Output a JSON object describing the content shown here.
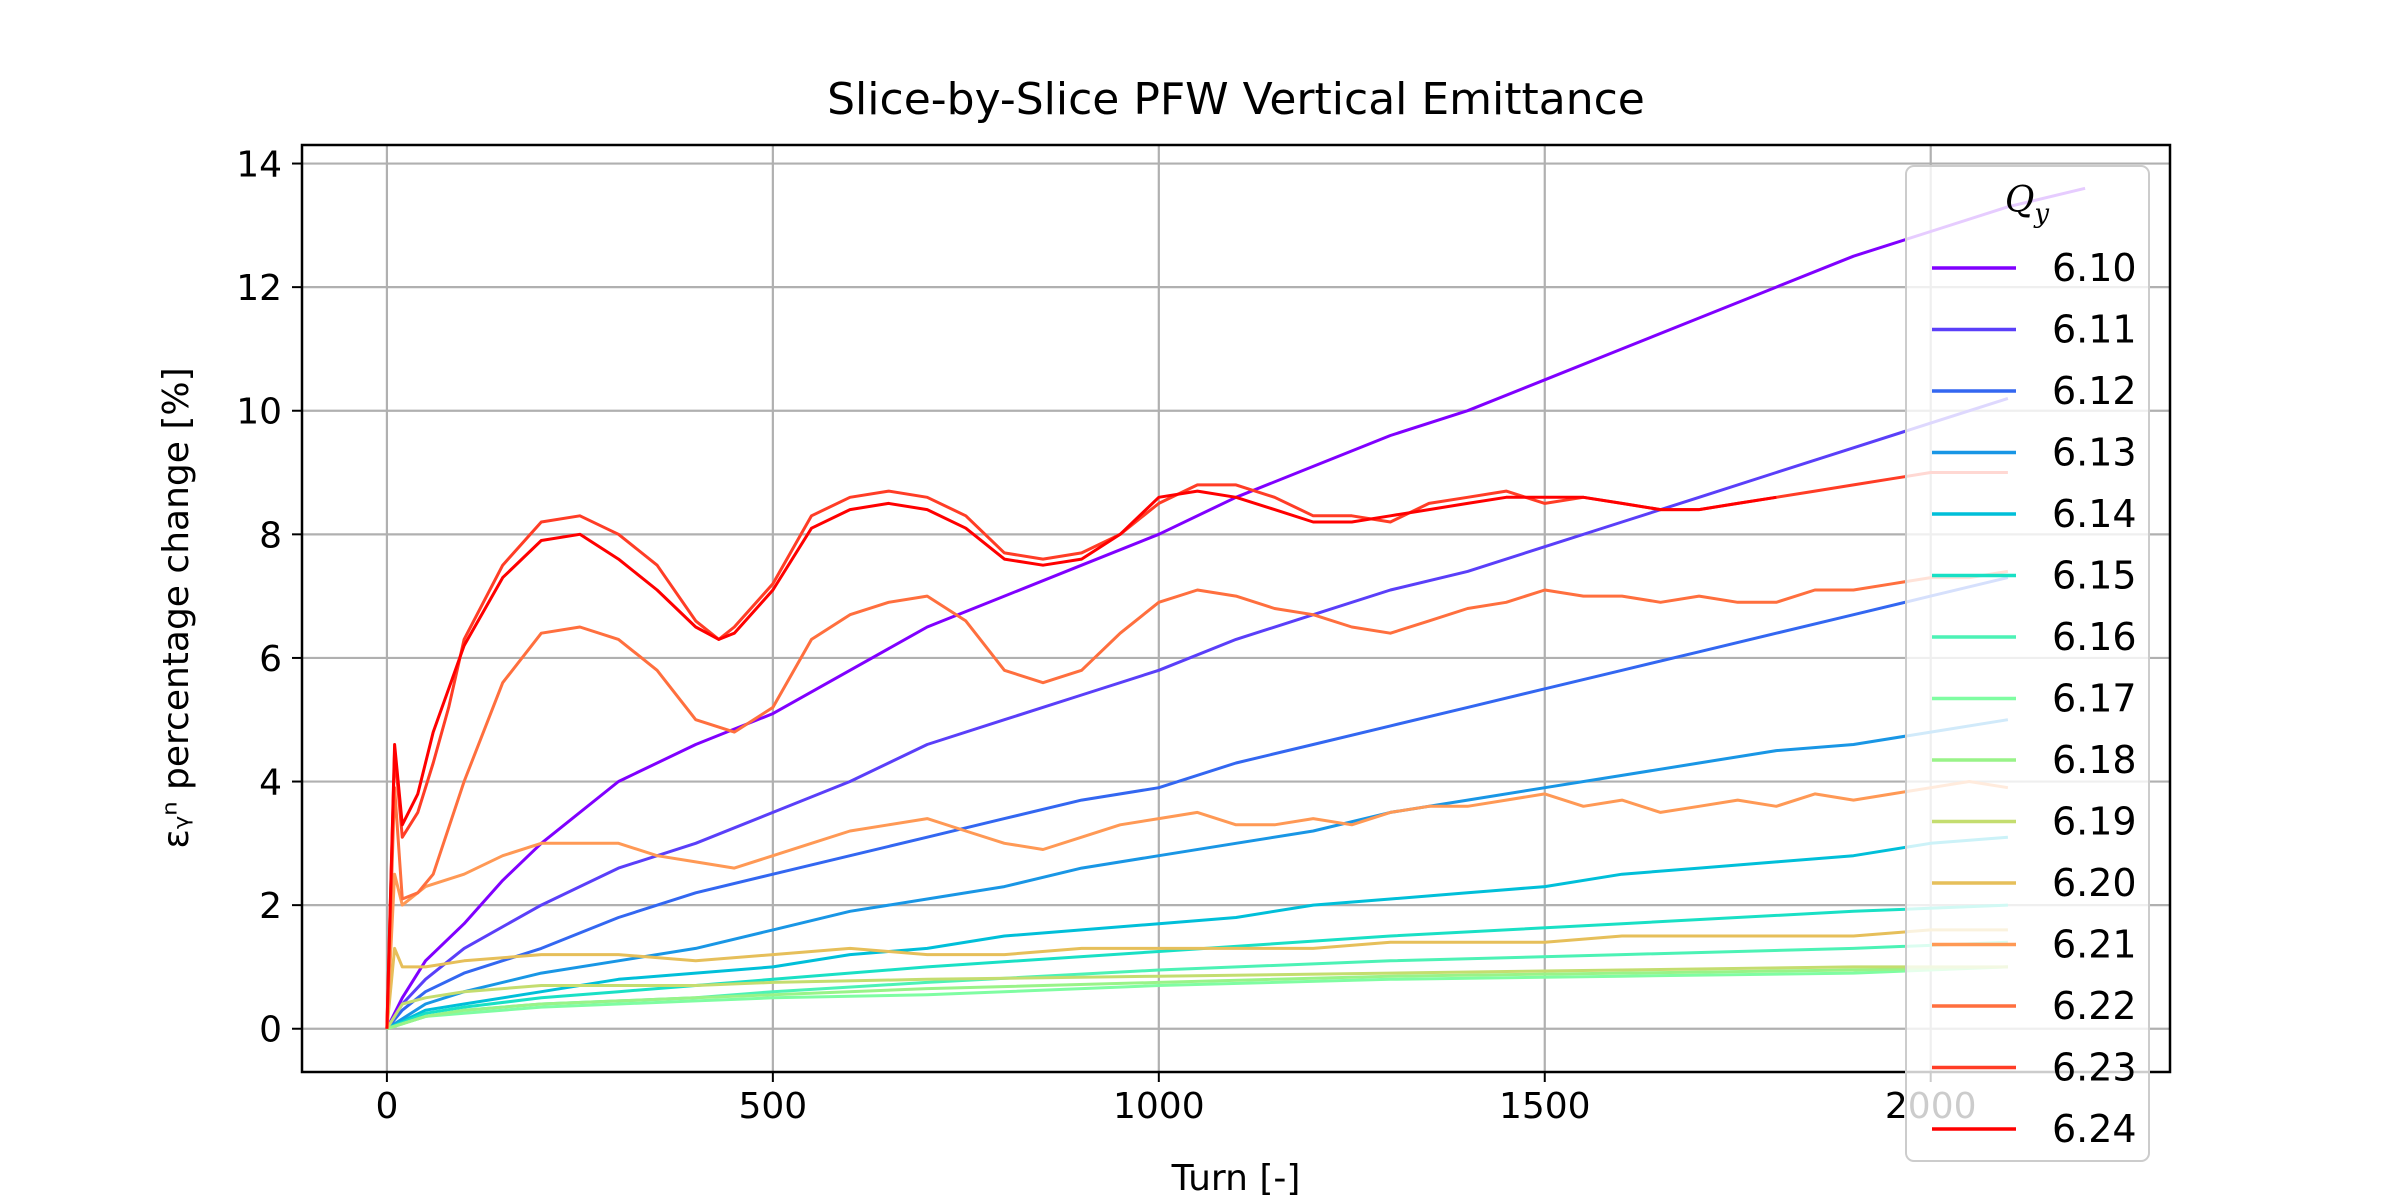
{
  "chart_data": {
    "type": "line",
    "title": "Slice-by-Slice PFW Vertical Emittance",
    "xlabel": "Turn [-]",
    "ylabel": "εᵧⁿ percentage change [%]",
    "xlim": [
      -110,
      2310
    ],
    "ylim": [
      -0.7,
      14.3
    ],
    "xticks": [
      0,
      500,
      1000,
      1500,
      2000
    ],
    "yticks": [
      0,
      2,
      4,
      6,
      8,
      10,
      12,
      14
    ],
    "grid": true,
    "legend": {
      "title": "Q_y",
      "placement": "right, partially overlapping plot area"
    },
    "series": [
      {
        "name": "6.10",
        "color": "#8000ff",
        "x": [
          0,
          20,
          50,
          100,
          150,
          200,
          300,
          400,
          500,
          600,
          700,
          800,
          900,
          1000,
          1100,
          1200,
          1300,
          1400,
          1500,
          1600,
          1700,
          1800,
          1900,
          2000,
          2100,
          2200
        ],
        "y": [
          0,
          0.5,
          1.1,
          1.7,
          2.4,
          3.0,
          4.0,
          4.6,
          5.1,
          5.8,
          6.5,
          7.0,
          7.5,
          8.0,
          8.6,
          9.1,
          9.6,
          10.0,
          10.5,
          11.0,
          11.5,
          12.0,
          12.5,
          12.9,
          13.3,
          13.6
        ]
      },
      {
        "name": "6.11",
        "color": "#5a3ff9",
        "x": [
          0,
          20,
          50,
          100,
          200,
          300,
          400,
          500,
          600,
          700,
          800,
          900,
          1000,
          1100,
          1200,
          1300,
          1400,
          1500,
          1600,
          1700,
          1800,
          1900,
          2000,
          2100
        ],
        "y": [
          0,
          0.4,
          0.8,
          1.3,
          2.0,
          2.6,
          3.0,
          3.5,
          4.0,
          4.6,
          5.0,
          5.4,
          5.8,
          6.3,
          6.7,
          7.1,
          7.4,
          7.8,
          8.2,
          8.6,
          9.0,
          9.4,
          9.8,
          10.2
        ]
      },
      {
        "name": "6.12",
        "color": "#3367f1",
        "x": [
          0,
          20,
          50,
          100,
          200,
          300,
          400,
          500,
          600,
          700,
          800,
          900,
          1000,
          1100,
          1200,
          1300,
          1400,
          1500,
          1600,
          1700,
          1800,
          1900,
          2000,
          2100
        ],
        "y": [
          0,
          0.3,
          0.6,
          0.9,
          1.3,
          1.8,
          2.2,
          2.5,
          2.8,
          3.1,
          3.4,
          3.7,
          3.9,
          4.3,
          4.6,
          4.9,
          5.2,
          5.5,
          5.8,
          6.1,
          6.4,
          6.7,
          7.0,
          7.3
        ]
      },
      {
        "name": "6.13",
        "color": "#1996e5",
        "x": [
          0,
          50,
          100,
          200,
          300,
          400,
          500,
          600,
          700,
          800,
          900,
          1000,
          1100,
          1200,
          1300,
          1400,
          1500,
          1600,
          1700,
          1800,
          1900,
          2000,
          2100
        ],
        "y": [
          0,
          0.4,
          0.6,
          0.9,
          1.1,
          1.3,
          1.6,
          1.9,
          2.1,
          2.3,
          2.6,
          2.8,
          3.0,
          3.2,
          3.5,
          3.7,
          3.9,
          4.1,
          4.3,
          4.5,
          4.6,
          4.8,
          5.0
        ]
      },
      {
        "name": "6.14",
        "color": "#00bfd9",
        "x": [
          0,
          50,
          100,
          200,
          300,
          400,
          500,
          600,
          700,
          800,
          900,
          1000,
          1100,
          1200,
          1300,
          1400,
          1500,
          1600,
          1700,
          1800,
          1900,
          2000,
          2100
        ],
        "y": [
          0,
          0.3,
          0.4,
          0.6,
          0.8,
          0.9,
          1.0,
          1.2,
          1.3,
          1.5,
          1.6,
          1.7,
          1.8,
          2.0,
          2.1,
          2.2,
          2.3,
          2.5,
          2.6,
          2.7,
          2.8,
          3.0,
          3.1
        ]
      },
      {
        "name": "6.15",
        "color": "#19e0c5",
        "x": [
          0,
          50,
          100,
          200,
          300,
          400,
          500,
          700,
          1000,
          1300,
          1600,
          1900,
          2100
        ],
        "y": [
          0,
          0.25,
          0.35,
          0.5,
          0.6,
          0.7,
          0.8,
          1.0,
          1.25,
          1.5,
          1.7,
          1.9,
          2.0
        ]
      },
      {
        "name": "6.16",
        "color": "#4cf2b5",
        "x": [
          0,
          50,
          100,
          200,
          300,
          400,
          500,
          700,
          1000,
          1300,
          1600,
          1900,
          2100
        ],
        "y": [
          0,
          0.2,
          0.3,
          0.4,
          0.45,
          0.5,
          0.6,
          0.75,
          0.95,
          1.1,
          1.2,
          1.3,
          1.4
        ]
      },
      {
        "name": "6.17",
        "color": "#7ffda2",
        "x": [
          0,
          50,
          100,
          200,
          300,
          400,
          500,
          700,
          1000,
          1300,
          1600,
          1900,
          2100
        ],
        "y": [
          0,
          0.2,
          0.25,
          0.35,
          0.4,
          0.45,
          0.5,
          0.55,
          0.7,
          0.8,
          0.85,
          0.9,
          1.0
        ]
      },
      {
        "name": "6.18",
        "color": "#99f388",
        "x": [
          0,
          50,
          100,
          200,
          300,
          400,
          500,
          700,
          1000,
          1300,
          1600,
          1900,
          2100
        ],
        "y": [
          0,
          0.2,
          0.3,
          0.4,
          0.45,
          0.5,
          0.55,
          0.65,
          0.75,
          0.85,
          0.9,
          0.95,
          1.0
        ]
      },
      {
        "name": "6.19",
        "color": "#c4dd6f",
        "x": [
          0,
          20,
          50,
          100,
          200,
          300,
          400,
          500,
          700,
          1000,
          1300,
          1600,
          1900,
          2100
        ],
        "y": [
          0,
          0.4,
          0.5,
          0.6,
          0.7,
          0.7,
          0.7,
          0.75,
          0.8,
          0.85,
          0.9,
          0.95,
          1.0,
          1.0
        ]
      },
      {
        "name": "6.20",
        "color": "#e6bf5a",
        "x": [
          0,
          10,
          20,
          50,
          100,
          200,
          300,
          400,
          500,
          600,
          700,
          800,
          900,
          1000,
          1100,
          1200,
          1300,
          1400,
          1500,
          1600,
          1700,
          1800,
          1900,
          2000,
          2100
        ],
        "y": [
          0,
          1.3,
          1.0,
          1.0,
          1.1,
          1.2,
          1.2,
          1.1,
          1.2,
          1.3,
          1.2,
          1.2,
          1.3,
          1.3,
          1.3,
          1.3,
          1.4,
          1.4,
          1.4,
          1.5,
          1.5,
          1.5,
          1.5,
          1.6,
          1.6
        ]
      },
      {
        "name": "6.21",
        "color": "#ff9955",
        "x": [
          0,
          10,
          20,
          50,
          100,
          150,
          200,
          250,
          300,
          350,
          400,
          450,
          500,
          550,
          600,
          650,
          700,
          750,
          800,
          850,
          900,
          950,
          1000,
          1050,
          1100,
          1150,
          1200,
          1250,
          1300,
          1350,
          1400,
          1450,
          1500,
          1550,
          1600,
          1650,
          1700,
          1750,
          1800,
          1850,
          1900,
          1950,
          2000,
          2050,
          2100
        ],
        "y": [
          0,
          2.5,
          2.0,
          2.3,
          2.5,
          2.8,
          3.0,
          3.0,
          3.0,
          2.8,
          2.7,
          2.6,
          2.8,
          3.0,
          3.2,
          3.3,
          3.4,
          3.2,
          3.0,
          2.9,
          3.1,
          3.3,
          3.4,
          3.5,
          3.3,
          3.3,
          3.4,
          3.3,
          3.5,
          3.6,
          3.6,
          3.7,
          3.8,
          3.6,
          3.7,
          3.5,
          3.6,
          3.7,
          3.6,
          3.8,
          3.7,
          3.8,
          3.9,
          4.0,
          3.9
        ]
      },
      {
        "name": "6.22",
        "color": "#ff6f3e",
        "x": [
          0,
          10,
          20,
          40,
          60,
          100,
          150,
          200,
          250,
          300,
          350,
          400,
          450,
          500,
          550,
          600,
          650,
          700,
          750,
          800,
          850,
          900,
          950,
          1000,
          1050,
          1100,
          1150,
          1200,
          1250,
          1300,
          1350,
          1400,
          1450,
          1500,
          1550,
          1600,
          1650,
          1700,
          1750,
          1800,
          1850,
          1900,
          1950,
          2000,
          2050,
          2100
        ],
        "y": [
          0,
          3.9,
          2.1,
          2.2,
          2.5,
          4.0,
          5.6,
          6.4,
          6.5,
          6.3,
          5.8,
          5.0,
          4.8,
          5.2,
          6.3,
          6.7,
          6.9,
          7.0,
          6.6,
          5.8,
          5.6,
          5.8,
          6.4,
          6.9,
          7.1,
          7.0,
          6.8,
          6.7,
          6.5,
          6.4,
          6.6,
          6.8,
          6.9,
          7.1,
          7.0,
          7.0,
          6.9,
          7.0,
          6.9,
          6.9,
          7.1,
          7.1,
          7.2,
          7.3,
          7.3,
          7.4
        ]
      },
      {
        "name": "6.23",
        "color": "#ff3d26",
        "x": [
          0,
          10,
          20,
          40,
          60,
          80,
          100,
          150,
          200,
          250,
          300,
          350,
          400,
          430,
          450,
          500,
          550,
          600,
          650,
          700,
          750,
          800,
          850,
          900,
          950,
          1000,
          1050,
          1100,
          1150,
          1200,
          1250,
          1300,
          1350,
          1400,
          1450,
          1500,
          1550,
          1600,
          1650,
          1700,
          1750,
          1800,
          1850,
          1900,
          1950,
          2000,
          2050,
          2100
        ],
        "y": [
          0,
          4.5,
          3.1,
          3.5,
          4.3,
          5.2,
          6.3,
          7.5,
          8.2,
          8.3,
          8.0,
          7.5,
          6.6,
          6.3,
          6.5,
          7.2,
          8.3,
          8.6,
          8.7,
          8.6,
          8.3,
          7.7,
          7.6,
          7.7,
          8.0,
          8.5,
          8.8,
          8.8,
          8.6,
          8.3,
          8.3,
          8.2,
          8.5,
          8.6,
          8.7,
          8.5,
          8.6,
          8.5,
          8.4,
          8.4,
          8.5,
          8.6,
          8.7,
          8.8,
          8.9,
          9.0,
          9.0,
          9.0
        ]
      },
      {
        "name": "6.24",
        "color": "#ff0000",
        "x": [
          0,
          10,
          20,
          40,
          60,
          80,
          100,
          150,
          200,
          250,
          300,
          350,
          400,
          430,
          450,
          500,
          550,
          600,
          650,
          700,
          750,
          800,
          850,
          900,
          950,
          1000,
          1050,
          1100,
          1150,
          1200,
          1250,
          1300,
          1350,
          1400,
          1450,
          1500,
          1550,
          1600,
          1650,
          1700,
          1750,
          1800
        ],
        "y": [
          0,
          4.6,
          3.3,
          3.8,
          4.8,
          5.5,
          6.2,
          7.3,
          7.9,
          8.0,
          7.6,
          7.1,
          6.5,
          6.3,
          6.4,
          7.1,
          8.1,
          8.4,
          8.5,
          8.4,
          8.1,
          7.6,
          7.5,
          7.6,
          8.0,
          8.6,
          8.7,
          8.6,
          8.4,
          8.2,
          8.2,
          8.3,
          8.4,
          8.5,
          8.6,
          8.6,
          8.6,
          8.5,
          8.4,
          8.4,
          8.5,
          8.6
        ]
      }
    ]
  }
}
